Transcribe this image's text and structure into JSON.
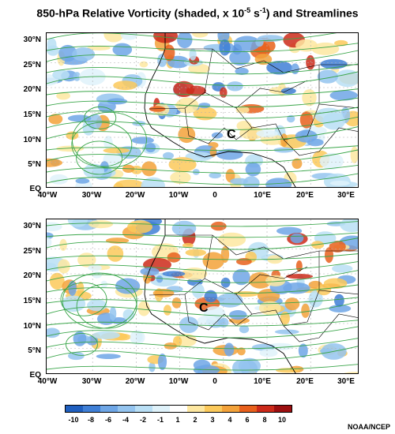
{
  "header": {
    "title_main": "850-hPa Relative Vorticity (shaded, x 10",
    "title_exp": "-5",
    "title_mid": " s",
    "title_exp2": "-1",
    "title_end": ") and Streamlines"
  },
  "map": {
    "lat_labels": [
      "30°N",
      "25°N",
      "20°N",
      "15°N",
      "10°N",
      "5°N",
      "EQ"
    ],
    "lon_labels": [
      "40°W",
      "30°W",
      "20°W",
      "10°W",
      "0",
      "10°E",
      "20°E",
      "30°E"
    ],
    "center_marker": "C"
  },
  "colorbar": {
    "labels": [
      "-10",
      "-8",
      "-6",
      "-4",
      "-2",
      "-1",
      "1",
      "2",
      "3",
      "4",
      "6",
      "8",
      "10"
    ],
    "colors": [
      "#1f5fbf",
      "#3f7fd6",
      "#6ea6e6",
      "#94c4ef",
      "#b9dff5",
      "#dff2fa",
      "#ffffff",
      "#fde7a0",
      "#fbc95b",
      "#f3a23a",
      "#e8601c",
      "#cc2a1a",
      "#9c0f10"
    ]
  },
  "credit": "NOAA/NCEP"
}
